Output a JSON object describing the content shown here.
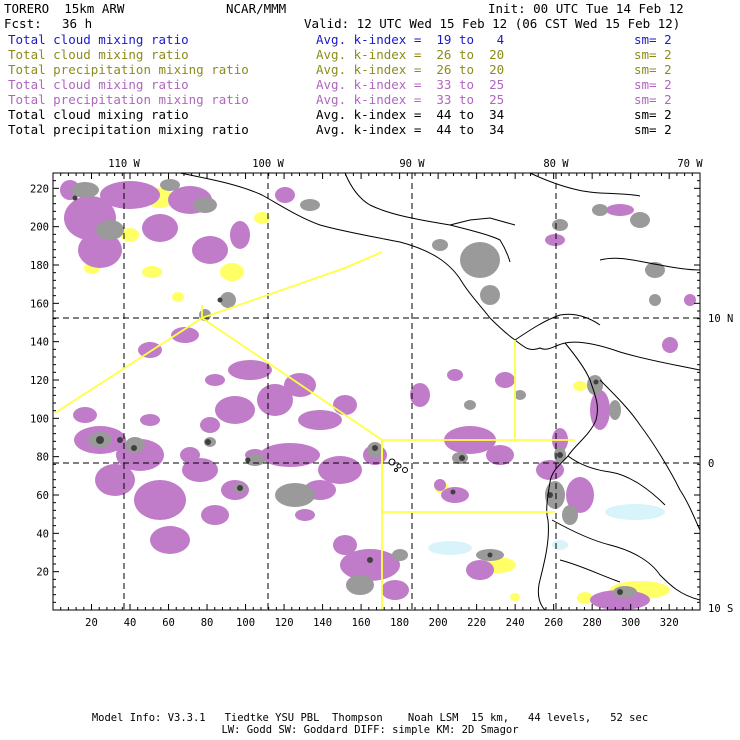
{
  "header": {
    "model": "TORERO  15km ARW",
    "org": "NCAR/MMM",
    "init": "Init: 00 UTC Tue 14 Feb 12",
    "fcst_label": "Fcst:",
    "fcst_value": "36 h",
    "valid": "Valid: 12 UTC Wed 15 Feb 12 (06 CST Wed 15 Feb 12)"
  },
  "fields": [
    {
      "name": "Total cloud mixing ratio",
      "kindex": "Avg. k-index =  19 to   4",
      "sm": "sm= 2",
      "color": "#1a1acc"
    },
    {
      "name": "Total cloud mixing ratio",
      "kindex": "Avg. k-index =  26 to  20",
      "sm": "sm= 2",
      "color": "#8c8c1c"
    },
    {
      "name": "Total precipitation mixing ratio",
      "kindex": "Avg. k-index =  26 to  20",
      "sm": "sm= 2",
      "color": "#8c8c1c"
    },
    {
      "name": "Total cloud mixing ratio",
      "kindex": "Avg. k-index =  33 to  25",
      "sm": "sm= 2",
      "color": "#b066c0"
    },
    {
      "name": "Total precipitation mixing ratio",
      "kindex": "Avg. k-index =  33 to  25",
      "sm": "sm= 2",
      "color": "#b066c0"
    },
    {
      "name": "Total cloud mixing ratio",
      "kindex": "Avg. k-index =  44 to  34",
      "sm": "sm= 2",
      "color": "#000000"
    },
    {
      "name": "Total precipitation mixing ratio",
      "kindex": "Avg. k-index =  44 to  34",
      "sm": "sm= 2",
      "color": "#000000"
    }
  ],
  "axes": {
    "x_ticks": [
      "20",
      "40",
      "60",
      "80",
      "100",
      "120",
      "140",
      "160",
      "180",
      "200",
      "220",
      "240",
      "260",
      "280",
      "300",
      "320"
    ],
    "y_ticks": [
      "20",
      "40",
      "60",
      "80",
      "100",
      "120",
      "140",
      "160",
      "180",
      "200",
      "220"
    ],
    "lon_labels": [
      "110 W",
      "100 W",
      "90 W",
      "80 W",
      "70 W"
    ],
    "lat_labels": [
      "10 N",
      "0",
      "10 S"
    ]
  },
  "colors": {
    "purple": "#c07cc8",
    "yellow": "#ffff66",
    "gray": "#9a9a9a",
    "dark": "#505050",
    "cyan": "#d8f4fa",
    "domain_box": "#ffff44"
  },
  "footer": {
    "line1": "Model Info: V3.3.1   Tiedtke YSU PBL  Thompson    Noah LSM  15 km,   44 levels,   52 sec",
    "line2": "LW: Godd SW: Goddard DIFF: simple KM: 2D Smagor"
  }
}
